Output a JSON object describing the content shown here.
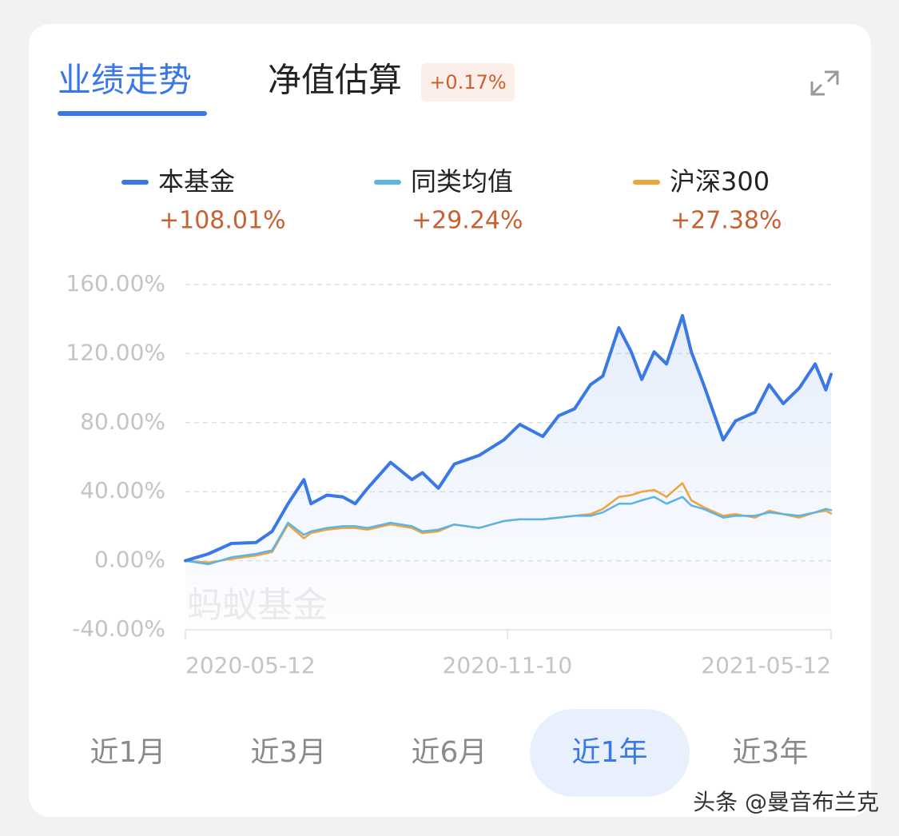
{
  "tabs": [
    "业绩走势",
    "净值估算"
  ],
  "active_tab": 0,
  "estimate_badge": "+0.17%",
  "chart_data": {
    "type": "line",
    "x": [
      "2020-05-12",
      "2020-05-25",
      "2020-06-07",
      "2020-06-21",
      "2020-06-30",
      "2020-07-09",
      "2020-07-18",
      "2020-07-22",
      "2020-07-31",
      "2020-08-09",
      "2020-08-16",
      "2020-08-23",
      "2020-09-05",
      "2020-09-17",
      "2020-09-23",
      "2020-10-02",
      "2020-10-11",
      "2020-10-25",
      "2020-11-08",
      "2020-11-17",
      "2020-11-30",
      "2020-12-09",
      "2020-12-18",
      "2020-12-27",
      "2021-01-03",
      "2021-01-12",
      "2021-01-19",
      "2021-01-25",
      "2021-02-01",
      "2021-02-08",
      "2021-02-17",
      "2021-02-22",
      "2021-03-01",
      "2021-03-12",
      "2021-03-19",
      "2021-03-30",
      "2021-04-07",
      "2021-04-15",
      "2021-04-24",
      "2021-05-03",
      "2021-05-09",
      "2021-05-12"
    ],
    "series": [
      {
        "name": "本基金",
        "change": "+108.01%",
        "color": "#3a78e6",
        "area": true,
        "values": [
          0,
          4,
          10,
          10.6,
          17,
          33,
          47,
          33,
          38,
          37,
          33,
          42,
          57,
          47,
          51,
          42,
          56,
          61,
          70,
          79,
          72,
          84,
          88,
          102,
          107,
          135,
          121,
          105,
          121,
          114,
          142,
          121,
          102,
          70,
          81,
          86,
          102,
          91,
          100,
          114,
          99,
          108.01
        ]
      },
      {
        "name": "同类均值",
        "change": "+29.24%",
        "color": "#5ab4e5",
        "values": [
          0,
          -2,
          2,
          4,
          6,
          22,
          15,
          17,
          19,
          20,
          20,
          19,
          22,
          20,
          17,
          18,
          21,
          19,
          23,
          24,
          24,
          25,
          26,
          26,
          28,
          33,
          33,
          35,
          37,
          33,
          37,
          32,
          30,
          25,
          26,
          26,
          28,
          27,
          26,
          28,
          30,
          29.24
        ]
      },
      {
        "name": "沪深300",
        "change": "+27.38%",
        "color": "#f0a33c",
        "values": [
          0,
          -1,
          1,
          3,
          5,
          21,
          13,
          16,
          18,
          19,
          19,
          18,
          21,
          19,
          16,
          17,
          21,
          19,
          23,
          24,
          24,
          25,
          26,
          27,
          30,
          37,
          38,
          40,
          41,
          37,
          45,
          35,
          31,
          26,
          27,
          25,
          29,
          27,
          25,
          28,
          29,
          27.38
        ]
      }
    ],
    "xlim": [
      "2020-05-12",
      "2021-05-12"
    ],
    "xticks": [
      "2020-05-12",
      "2020-11-10",
      "2021-05-12"
    ],
    "ylim": [
      -40,
      160
    ],
    "yticks": [
      {
        "value": 160,
        "label": "160.00%"
      },
      {
        "value": 120,
        "label": "120.00%"
      },
      {
        "value": 80,
        "label": "80.00%"
      },
      {
        "value": 40,
        "label": "40.00%"
      },
      {
        "value": 0,
        "label": "0.00%"
      },
      {
        "value": -40,
        "label": "-40.00%"
      }
    ],
    "grid": true,
    "watermark": "蚂蚁基金"
  },
  "periods": [
    "近1月",
    "近3月",
    "近6月",
    "近1年",
    "近3年"
  ],
  "active_period": 3,
  "footer": "头条 @曼音布兰克"
}
